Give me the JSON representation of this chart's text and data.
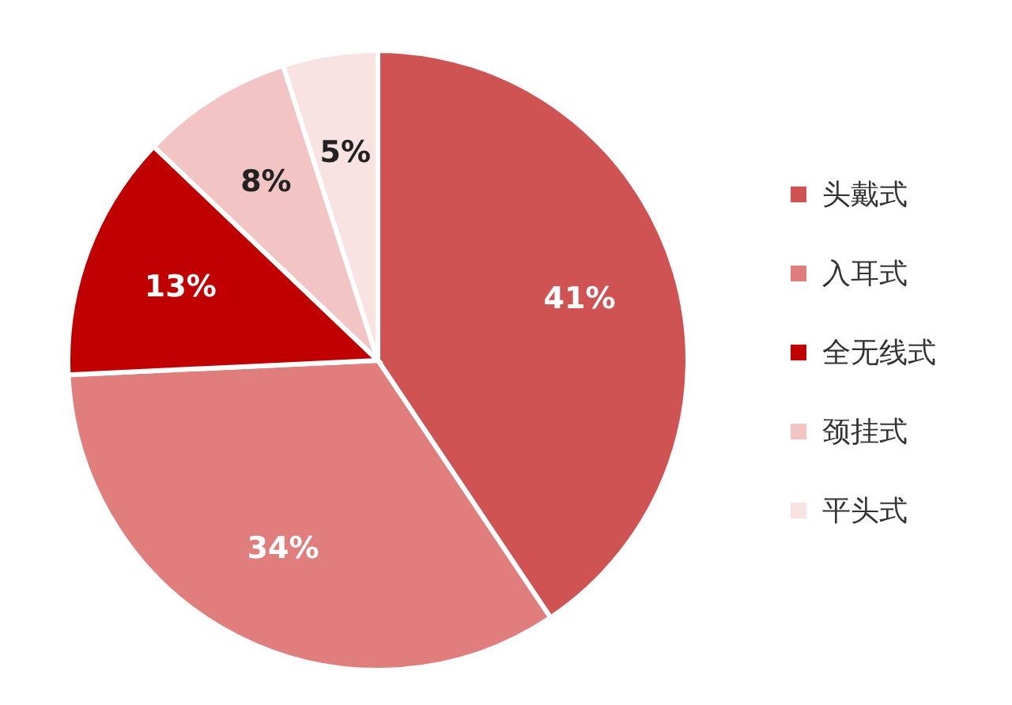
{
  "chart_data": {
    "type": "pie",
    "categories": [
      "头戴式",
      "入耳式",
      "全无线式",
      "颈挂式",
      "平头式"
    ],
    "values": [
      41,
      34,
      13,
      8,
      5
    ],
    "colors": [
      "#d05353",
      "#e07d7d",
      "#c00000",
      "#f2c4c4",
      "#f8e2e2"
    ],
    "value_labels": [
      "41%",
      "34%",
      "13%",
      "8%",
      "5%"
    ],
    "legend": "right"
  }
}
